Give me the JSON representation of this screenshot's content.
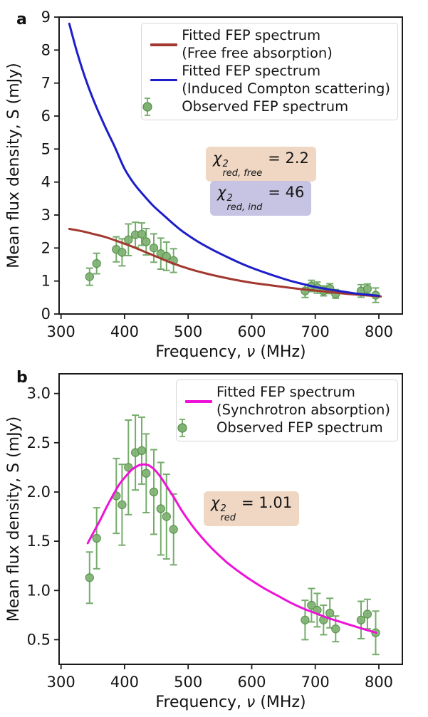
{
  "figure": {
    "panels": [
      {
        "label": "a",
        "legend": {
          "entries": [
            {
              "swatch": "line",
              "color": "#a2382f",
              "lines": [
                "Fitted FEP spectrum",
                "(Free free absorption)"
              ]
            },
            {
              "swatch": "line",
              "color": "#1c1ec9",
              "lines": [
                "Fitted FEP spectrum",
                "(Induced Compton scattering)"
              ]
            },
            {
              "swatch": "marker",
              "color": "#7fb173",
              "lines": [
                "Observed FEP spectrum"
              ]
            }
          ]
        },
        "annotations": [
          {
            "symbol": "χ",
            "sup": "2",
            "sub": "red, free",
            "value": "= 2.2",
            "bg": "#efd7c3"
          },
          {
            "symbol": "χ",
            "sup": "2",
            "sub": "red, ind",
            "value": "= 46",
            "bg": "#c7c4e3"
          }
        ]
      },
      {
        "label": "b",
        "legend": {
          "entries": [
            {
              "swatch": "line",
              "color": "#ee12d7",
              "lines": [
                "Fitted FEP spectrum",
                "(Synchrotron absorption)"
              ]
            },
            {
              "swatch": "marker",
              "color": "#7fb173",
              "lines": [
                "Observed FEP spectrum"
              ]
            }
          ]
        },
        "annotations": [
          {
            "symbol": "χ",
            "sup": "2",
            "sub": "red",
            "value": "= 1.01",
            "bg": "#efd7c3"
          }
        ]
      }
    ]
  },
  "chart_data": [
    {
      "type": "line",
      "title": "",
      "xlabel_parts": [
        "Frequency, ",
        "ν",
        " (MHz)"
      ],
      "ylabel": "Mean flux density, S (mJy)",
      "xlim": [
        297,
        837
      ],
      "ylim": [
        0,
        9
      ],
      "xticks": [
        300,
        400,
        500,
        600,
        700,
        800
      ],
      "xtick_labels": [
        "300",
        "400",
        "500",
        "600",
        "700",
        "800"
      ],
      "yticks": [
        0,
        1,
        2,
        3,
        4,
        5,
        6,
        7,
        8,
        9
      ],
      "ytick_labels": [
        "0",
        "1",
        "2",
        "3",
        "4",
        "5",
        "6",
        "7",
        "8",
        "9"
      ],
      "grid": false,
      "legend_position": "upper right",
      "series": [
        {
          "name": "Fitted FEP spectrum (Free free absorption)",
          "color": "#a2382f",
          "x": [
            313,
            330,
            350,
            370,
            390,
            410,
            430,
            450,
            470,
            490,
            510,
            530,
            550,
            570,
            590,
            610,
            630,
            650,
            670,
            690,
            710,
            730,
            750,
            770,
            790,
            803
          ],
          "y": [
            2.58,
            2.52,
            2.43,
            2.33,
            2.2,
            2.06,
            1.9,
            1.74,
            1.58,
            1.44,
            1.32,
            1.22,
            1.13,
            1.05,
            0.98,
            0.92,
            0.87,
            0.82,
            0.77,
            0.73,
            0.69,
            0.65,
            0.61,
            0.58,
            0.55,
            0.53
          ]
        },
        {
          "name": "Fitted FEP spectrum (Induced Compton scattering)",
          "color": "#1c1ec9",
          "x": [
            313,
            325,
            340,
            355,
            370,
            385,
            400,
            415,
            430,
            445,
            460,
            475,
            490,
            505,
            520,
            540,
            560,
            580,
            600,
            620,
            640,
            660,
            680,
            700,
            720,
            740,
            760,
            780,
            800
          ],
          "y": [
            8.8,
            7.95,
            7.05,
            6.3,
            5.65,
            5.05,
            4.4,
            3.95,
            3.6,
            3.28,
            3.02,
            2.76,
            2.52,
            2.32,
            2.14,
            1.93,
            1.74,
            1.56,
            1.4,
            1.26,
            1.13,
            1.01,
            0.91,
            0.82,
            0.75,
            0.69,
            0.63,
            0.59,
            0.55
          ]
        }
      ],
      "scatter": {
        "name": "Observed FEP spectrum",
        "fill": "#7fb173",
        "edge": "#4e8c41",
        "errcolor": "#76ac6c",
        "x": [
          345,
          356,
          387,
          396,
          406,
          417,
          427,
          434,
          446,
          457,
          466,
          477,
          684,
          694,
          703,
          713,
          723,
          732,
          772,
          782,
          795
        ],
        "y": [
          1.13,
          1.53,
          1.96,
          1.87,
          2.25,
          2.4,
          2.42,
          2.19,
          2.0,
          1.83,
          1.75,
          1.62,
          0.7,
          0.85,
          0.8,
          0.7,
          0.77,
          0.61,
          0.7,
          0.76,
          0.57
        ],
        "yerr": [
          0.26,
          0.31,
          0.38,
          0.41,
          0.48,
          0.38,
          0.34,
          0.4,
          0.43,
          0.47,
          0.43,
          0.36,
          0.2,
          0.17,
          0.17,
          0.15,
          0.15,
          0.13,
          0.19,
          0.15,
          0.22
        ]
      }
    },
    {
      "type": "line",
      "title": "",
      "xlabel_parts": [
        "Frequency, ",
        "ν",
        " (MHz)"
      ],
      "ylabel": "Mean flux density, S (mJy)",
      "xlim": [
        297,
        837
      ],
      "ylim": [
        0.25,
        3.2
      ],
      "xticks": [
        300,
        400,
        500,
        600,
        700,
        800
      ],
      "xtick_labels": [
        "300",
        "400",
        "500",
        "600",
        "700",
        "800"
      ],
      "yticks": [
        0.5,
        1.0,
        1.5,
        2.0,
        2.5,
        3.0
      ],
      "ytick_labels": [
        "0.5",
        "1.0",
        "1.5",
        "2.0",
        "2.5",
        "3.0"
      ],
      "grid": false,
      "legend_position": "upper right",
      "series": [
        {
          "name": "Fitted FEP spectrum (Synchrotron absorption)",
          "color": "#ee12d7",
          "x": [
            342,
            352,
            362,
            372,
            382,
            392,
            402,
            412,
            422,
            430,
            438,
            448,
            458,
            468,
            478,
            490,
            505,
            520,
            540,
            560,
            580,
            600,
            620,
            640,
            660,
            680,
            700,
            720,
            740,
            760,
            780,
            796
          ],
          "y": [
            1.48,
            1.6,
            1.72,
            1.85,
            1.97,
            2.08,
            2.16,
            2.23,
            2.27,
            2.28,
            2.27,
            2.22,
            2.14,
            2.04,
            1.94,
            1.81,
            1.67,
            1.55,
            1.41,
            1.29,
            1.19,
            1.1,
            1.02,
            0.95,
            0.88,
            0.82,
            0.77,
            0.72,
            0.68,
            0.64,
            0.6,
            0.57
          ]
        }
      ],
      "scatter": {
        "name": "Observed FEP spectrum",
        "fill": "#7fb173",
        "edge": "#4e8c41",
        "errcolor": "#76ac6c",
        "x": [
          345,
          356,
          387,
          396,
          406,
          417,
          427,
          434,
          446,
          457,
          466,
          477,
          684,
          694,
          703,
          713,
          723,
          732,
          772,
          782,
          795
        ],
        "y": [
          1.13,
          1.53,
          1.96,
          1.87,
          2.25,
          2.4,
          2.42,
          2.19,
          2.0,
          1.83,
          1.75,
          1.62,
          0.7,
          0.85,
          0.8,
          0.7,
          0.77,
          0.61,
          0.7,
          0.76,
          0.57
        ],
        "yerr": [
          0.26,
          0.31,
          0.38,
          0.41,
          0.48,
          0.38,
          0.34,
          0.4,
          0.43,
          0.47,
          0.43,
          0.36,
          0.2,
          0.17,
          0.17,
          0.15,
          0.15,
          0.13,
          0.19,
          0.15,
          0.22
        ]
      }
    }
  ]
}
